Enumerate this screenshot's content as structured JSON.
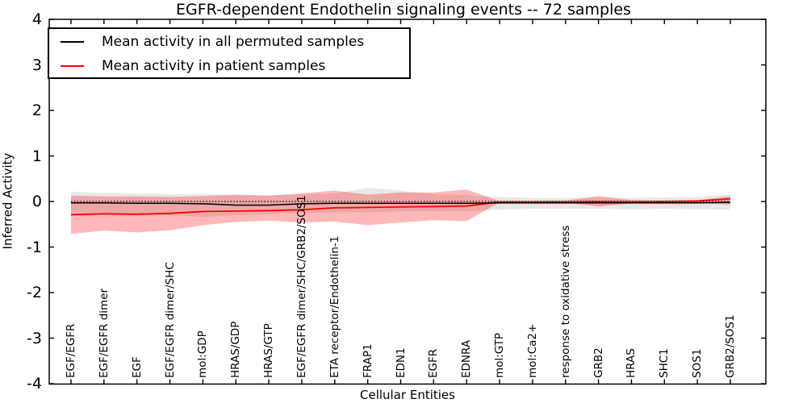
{
  "chart_data": {
    "type": "line",
    "title": "EGFR-dependent Endothelin signaling events -- 72 samples",
    "xlabel": "Cellular Entities",
    "ylabel": "Inferred Activity",
    "ylim": [
      -4,
      4
    ],
    "yticks": [
      4,
      3,
      2,
      1,
      0,
      -1,
      -2,
      -3,
      -4
    ],
    "grid": false,
    "legend_position": "upper left",
    "categories": [
      "EGF/EGFR",
      "EGF/EGFR dimer",
      "EGF",
      "EGF/EGFR dimer/SHC",
      "mol:GDP",
      "HRAS/GDP",
      "HRAS/GTP",
      "EGF/EGFR dimer/SHC/GRB2/SOS1",
      "ETA receptor/Endothelin-1",
      "FRAP1",
      "EDN1",
      "EGFR",
      "EDNRA",
      "mol:GTP",
      "mol:Ca2+",
      "response to oxidative stress",
      "GRB2",
      "HRAS",
      "SHC1",
      "SOS1",
      "GRB2/SOS1"
    ],
    "reference_line": {
      "y": 0,
      "style": "dotted",
      "color": "#000000"
    },
    "series": [
      {
        "name": "Mean activity in all permuted samples",
        "color": "#000000",
        "band_color": "rgba(0,0,0,0.09)",
        "values": [
          -0.03,
          -0.03,
          -0.04,
          -0.04,
          -0.05,
          -0.08,
          -0.08,
          -0.05,
          -0.04,
          -0.04,
          -0.04,
          -0.04,
          -0.04,
          -0.03,
          -0.03,
          -0.03,
          -0.03,
          -0.03,
          -0.03,
          -0.03,
          -0.02
        ],
        "band_upper": [
          0.22,
          0.18,
          0.17,
          0.16,
          0.17,
          0.14,
          0.13,
          0.15,
          0.18,
          0.3,
          0.24,
          0.16,
          0.14,
          0.1,
          0.08,
          0.08,
          0.09,
          0.08,
          0.09,
          0.1,
          0.15
        ],
        "band_lower": [
          -0.33,
          -0.3,
          -0.31,
          -0.3,
          -0.34,
          -0.3,
          -0.28,
          -0.25,
          -0.24,
          -0.24,
          -0.22,
          -0.22,
          -0.22,
          -0.18,
          -0.16,
          -0.16,
          -0.16,
          -0.17,
          -0.16,
          -0.17,
          -0.18
        ]
      },
      {
        "name": "Mean activity in patient samples",
        "color": "#ff0000",
        "band_color": "rgba(255,0,0,0.28)",
        "values": [
          -0.29,
          -0.27,
          -0.28,
          -0.26,
          -0.22,
          -0.21,
          -0.2,
          -0.18,
          -0.14,
          -0.13,
          -0.12,
          -0.11,
          -0.1,
          -0.01,
          -0.01,
          -0.01,
          0.0,
          -0.01,
          0.0,
          0.01,
          0.06
        ],
        "band_upper": [
          0.13,
          0.11,
          0.11,
          0.1,
          0.12,
          0.15,
          0.13,
          0.18,
          0.24,
          0.15,
          0.2,
          0.2,
          0.26,
          0.01,
          0.01,
          0.02,
          0.12,
          0.03,
          0.02,
          0.03,
          0.12
        ],
        "band_lower": [
          -0.71,
          -0.64,
          -0.68,
          -0.63,
          -0.52,
          -0.45,
          -0.42,
          -0.46,
          -0.44,
          -0.52,
          -0.46,
          -0.41,
          -0.43,
          -0.02,
          -0.01,
          -0.02,
          -0.11,
          -0.04,
          -0.03,
          -0.03,
          -0.07
        ]
      }
    ]
  }
}
